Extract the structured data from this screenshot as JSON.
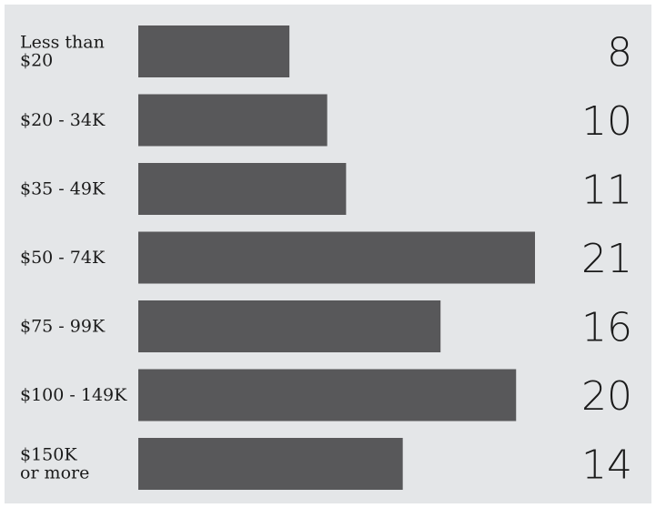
{
  "chart_data": {
    "type": "bar",
    "orientation": "horizontal",
    "categories": [
      "Less than $20",
      "$20 - 34K",
      "$35 - 49K",
      "$50 - 74K",
      "$75 - 99K",
      "$100 - 149K",
      "$150K or more"
    ],
    "category_lines": [
      [
        "Less than",
        "$20"
      ],
      [
        "$20 - 34K"
      ],
      [
        "$35 - 49K"
      ],
      [
        "$50 - 74K"
      ],
      [
        "$75 - 99K"
      ],
      [
        "$100 - 149K"
      ],
      [
        "$150K",
        "or more"
      ]
    ],
    "values": [
      8,
      10,
      11,
      21,
      16,
      20,
      14
    ],
    "value_labels": [
      "8",
      "10",
      "11",
      "21",
      "16",
      "20",
      "14"
    ],
    "xlim": [
      0,
      21
    ],
    "grid": false,
    "legend": "none",
    "title": "",
    "xlabel": "",
    "ylabel": ""
  },
  "colors": {
    "background": "#e4e6e8",
    "bar": "#58585a",
    "text": "#1a1a1a"
  }
}
